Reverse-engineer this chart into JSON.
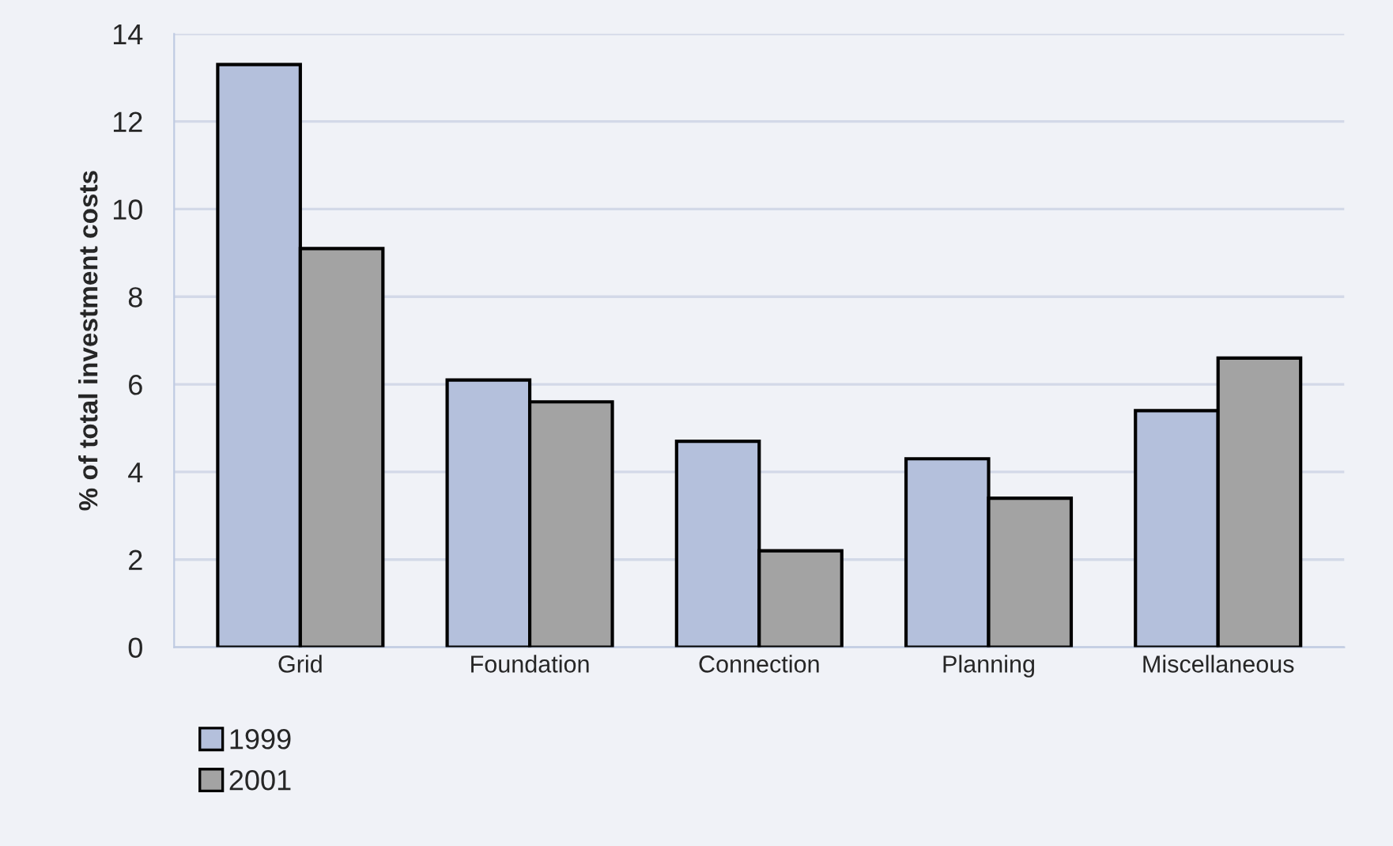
{
  "chart_data": {
    "type": "bar",
    "ylabel": "% of total investment costs",
    "categories": [
      "Grid",
      "Foundation",
      "Connection",
      "Planning",
      "Miscellaneous"
    ],
    "series": [
      {
        "name": "1999",
        "color": "#b4c0dc",
        "values": [
          13.3,
          6.1,
          4.7,
          4.3,
          5.4
        ]
      },
      {
        "name": "2001",
        "color": "#a3a3a3",
        "values": [
          9.1,
          5.6,
          2.2,
          3.4,
          6.6
        ]
      }
    ],
    "ylim": [
      0,
      14
    ],
    "yticks": [
      0,
      2,
      4,
      6,
      8,
      10,
      12,
      14
    ],
    "grid": "y",
    "legend": "bottom left"
  }
}
